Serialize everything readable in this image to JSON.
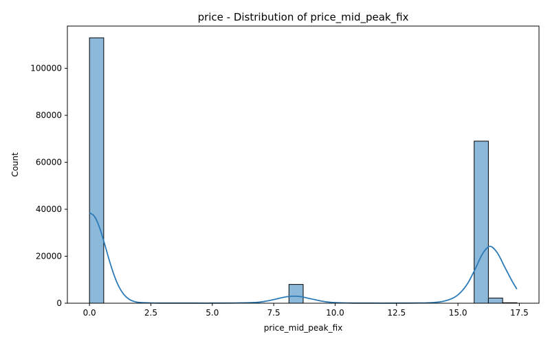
{
  "chart_data": {
    "type": "bar",
    "title": "price - Distribution of price_mid_peak_fix",
    "xlabel": "price_mid_peak_fix",
    "ylabel": "Count",
    "xlim": [
      -0.9,
      18.3
    ],
    "ylim": [
      0,
      118000
    ],
    "xticks": [
      0.0,
      2.5,
      5.0,
      7.5,
      10.0,
      12.5,
      15.0,
      17.5
    ],
    "xtick_labels": [
      "0.0",
      "2.5",
      "5.0",
      "7.5",
      "10.0",
      "12.5",
      "15.0",
      "17.5"
    ],
    "yticks": [
      0,
      20000,
      40000,
      60000,
      80000,
      100000
    ],
    "ytick_labels": [
      "0",
      "20000",
      "40000",
      "60000",
      "80000",
      "100000"
    ],
    "grid": false,
    "bars": [
      {
        "x0": 0.0,
        "x1": 0.58,
        "count": 113000
      },
      {
        "x0": 8.12,
        "x1": 8.7,
        "count": 8000
      },
      {
        "x0": 15.66,
        "x1": 16.24,
        "count": 69000
      },
      {
        "x0": 16.24,
        "x1": 16.82,
        "count": 2200
      },
      {
        "x0": 16.82,
        "x1": 17.4,
        "count": 200
      }
    ],
    "kde": {
      "x": [
        0.0,
        0.2,
        0.4,
        0.6,
        0.8,
        1.0,
        1.2,
        1.4,
        1.6,
        1.8,
        2.0,
        2.5,
        3.0,
        4.0,
        5.0,
        6.0,
        6.8,
        7.2,
        7.6,
        8.0,
        8.3,
        8.6,
        9.0,
        9.4,
        9.8,
        10.5,
        11.5,
        12.5,
        13.5,
        14.0,
        14.4,
        14.8,
        15.1,
        15.4,
        15.7,
        16.0,
        16.3,
        16.6,
        16.9,
        17.2,
        17.4
      ],
      "y": [
        38500,
        37000,
        32500,
        25800,
        18500,
        12000,
        7000,
        3700,
        1800,
        800,
        350,
        100,
        50,
        50,
        50,
        100,
        350,
        900,
        1800,
        2700,
        3000,
        2800,
        1900,
        1000,
        400,
        100,
        50,
        50,
        100,
        300,
        800,
        2200,
        4500,
        8500,
        14500,
        21000,
        24200,
        21500,
        15500,
        9500,
        6000
      ]
    },
    "colors": {
      "bar_fill": "#8cb8d9",
      "bar_edge": "#000000",
      "kde_line": "#2a7ab8"
    }
  }
}
